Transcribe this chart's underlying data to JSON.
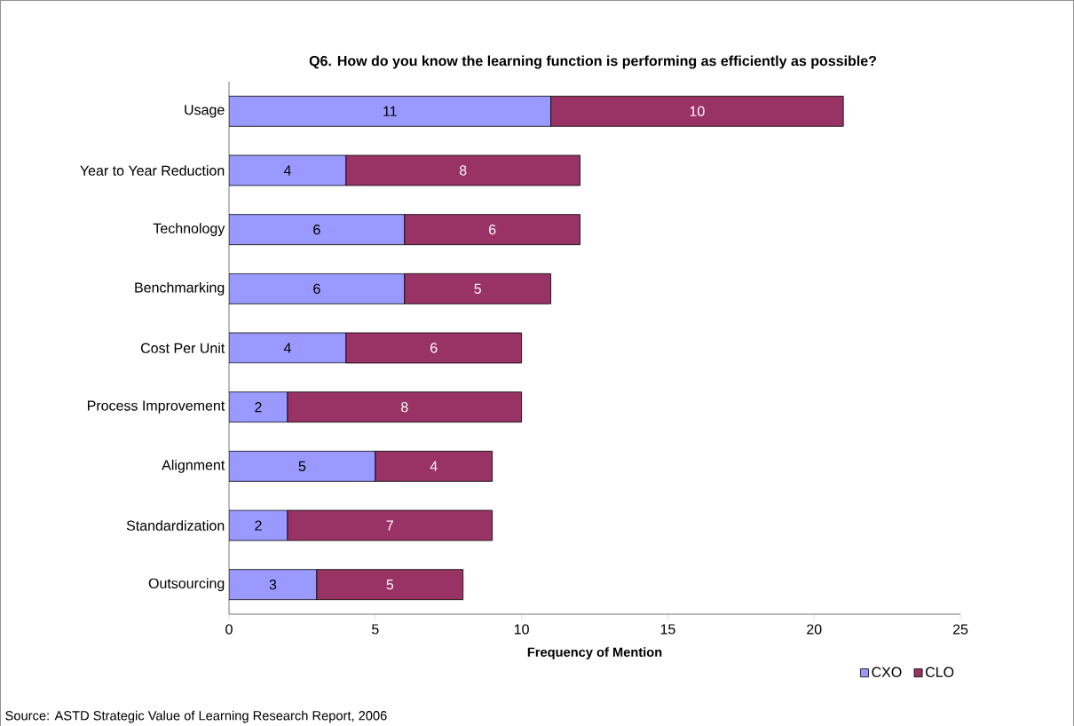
{
  "chart_data": {
    "type": "bar",
    "orientation": "horizontal",
    "stacked": true,
    "title": "Q6. How do you know the learning function is performing as efficiently as possible?",
    "xlabel": "Frequency of  Mention",
    "categories": [
      "Usage",
      "Year to Year Reduction",
      "Technology",
      "Benchmarking",
      "Cost Per Unit",
      "Process Improvement",
      "Alignment",
      "Standardization",
      "Outsourcing"
    ],
    "series": [
      {
        "name": "CXO",
        "color": "#9999ff",
        "values": [
          11,
          4,
          6,
          6,
          4,
          2,
          5,
          2,
          3
        ]
      },
      {
        "name": "CLO",
        "color": "#993366",
        "values": [
          10,
          8,
          6,
          5,
          6,
          8,
          4,
          7,
          5
        ]
      }
    ],
    "xlim": [
      0,
      25
    ],
    "xticks": [
      0,
      5,
      10,
      15,
      20,
      25
    ],
    "data_labels": true,
    "legend": "bottom right",
    "grid": false,
    "annotations": [
      "Source: ASTD Strategic Value of Learning Research Report, 2006"
    ]
  }
}
